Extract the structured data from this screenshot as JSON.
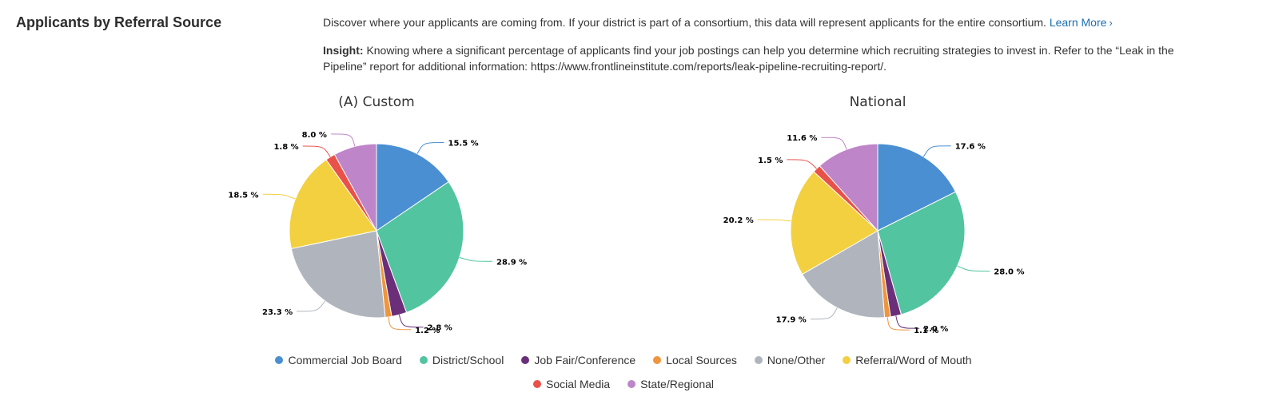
{
  "section": {
    "title": "Applicants by Referral Source",
    "description": "Discover where your applicants are coming from. If your district is part of a consortium, this data will represent applicants for the entire consortium.",
    "learn_more": "Learn More",
    "insight_label": "Insight:",
    "insight_text": "Knowing where a significant percentage of applicants find your job postings can help you determine which recruiting strategies to invest in. Refer to the “Leak in the Pipeline” report for additional information: https://www.frontlineinstitute.com/reports/leak-pipeline-recruiting-report/."
  },
  "legend": {
    "colors": [
      "#4a8fd1",
      "#52c4a0",
      "#6b2f7a",
      "#f0953e",
      "#b0b5bd",
      "#f2d03f",
      "#e8524a",
      "#bf85c9"
    ]
  },
  "chart_data": [
    {
      "type": "pie",
      "title": "(A) Custom",
      "categories": [
        "Commercial Job Board",
        "District/School",
        "Job Fair/Conference",
        "Local Sources",
        "None/Other",
        "Referral/Word of Mouth",
        "Social Media",
        "State/Regional"
      ],
      "values": [
        15.5,
        28.9,
        2.8,
        1.2,
        23.3,
        18.5,
        1.8,
        8.0
      ],
      "labels": [
        "15.5 %",
        "28.9 %",
        "2.8 %",
        "1.2 %",
        "23.3 %",
        "18.5 %",
        "1.8 %",
        "8.0 %"
      ],
      "legend": "bottom"
    },
    {
      "type": "pie",
      "title": "National",
      "categories": [
        "Commercial Job Board",
        "District/School",
        "Job Fair/Conference",
        "Local Sources",
        "None/Other",
        "Referral/Word of Mouth",
        "Social Media",
        "State/Regional"
      ],
      "values": [
        17.6,
        28.0,
        2.0,
        1.1,
        17.9,
        20.2,
        1.5,
        11.6
      ],
      "labels": [
        "17.6 %",
        "28.0 %",
        "2.0 %",
        "1.1 %",
        "17.9 %",
        "20.2 %",
        "1.5 %",
        "11.6 %"
      ],
      "legend": "bottom"
    }
  ]
}
